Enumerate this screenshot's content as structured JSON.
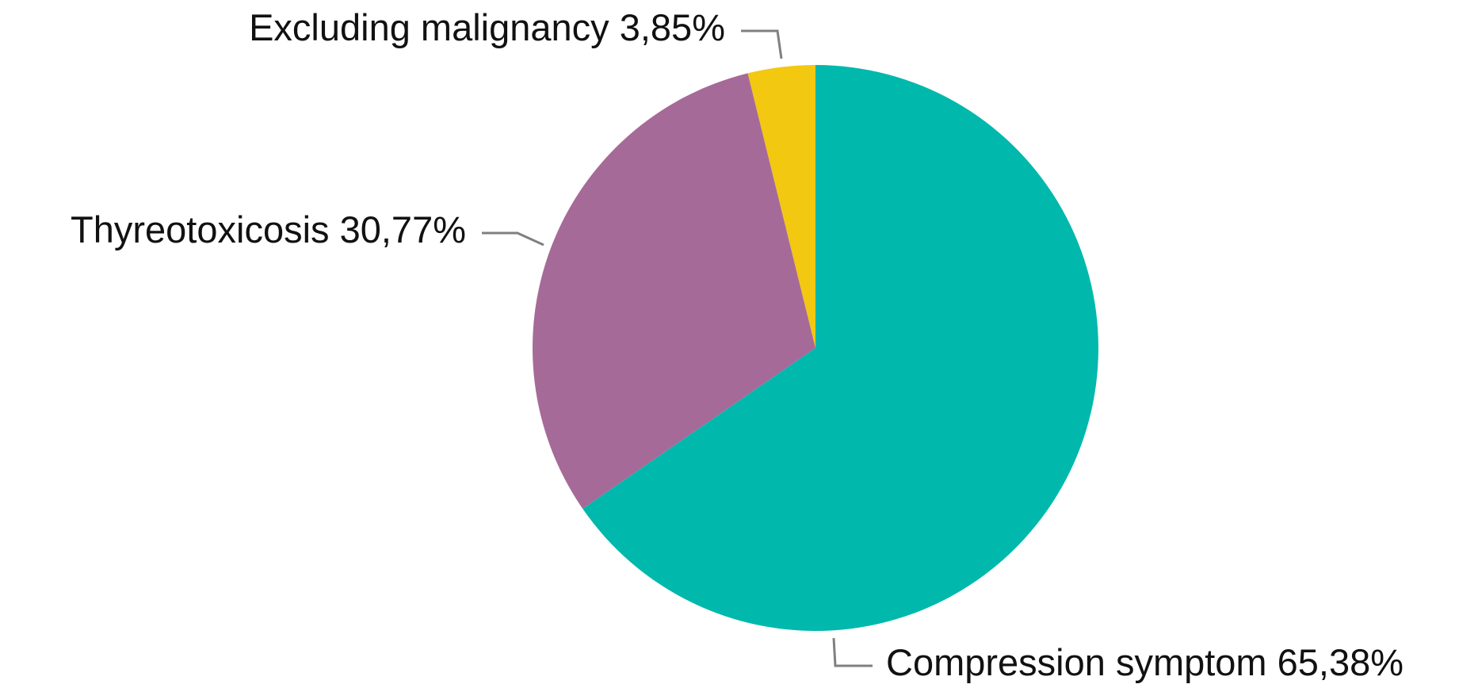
{
  "chart_data": {
    "type": "pie",
    "categories": [
      "Compression symptom",
      "Thyreotoxicosis",
      "Excluding malignancy"
    ],
    "values": [
      65.38,
      30.77,
      3.85
    ],
    "value_labels": [
      "65,38%",
      "30,77%",
      "3,85%"
    ],
    "colors": [
      "#00b8ac",
      "#a66a98",
      "#f2c811"
    ]
  }
}
